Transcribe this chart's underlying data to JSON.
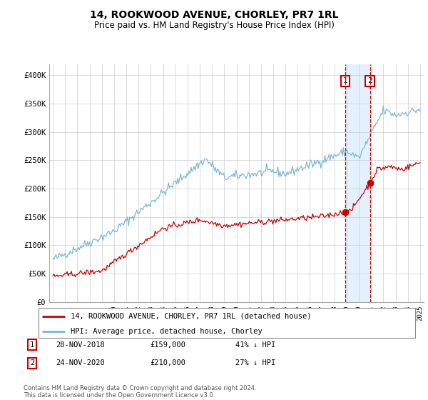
{
  "title": "14, ROOKWOOD AVENUE, CHORLEY, PR7 1RL",
  "subtitle": "Price paid vs. HM Land Registry's House Price Index (HPI)",
  "legend_line1": "14, ROOKWOOD AVENUE, CHORLEY, PR7 1RL (detached house)",
  "legend_line2": "HPI: Average price, detached house, Chorley",
  "sale1_date": "28-NOV-2018",
  "sale1_price": 159000,
  "sale1_label": "41% ↓ HPI",
  "sale2_date": "24-NOV-2020",
  "sale2_price": 210000,
  "sale2_label": "27% ↓ HPI",
  "footnote": "Contains HM Land Registry data © Crown copyright and database right 2024.\nThis data is licensed under the Open Government Licence v3.0.",
  "hpi_color": "#7ab8d9",
  "price_color": "#cc0000",
  "sale_dot_color": "#cc0000",
  "vline_color": "#cc0000",
  "shade_color": "#ddeeff",
  "ylim": [
    0,
    420000
  ],
  "ylabel_ticks": [
    "£0",
    "£50K",
    "£100K",
    "£150K",
    "£200K",
    "£250K",
    "£300K",
    "£350K",
    "£400K"
  ],
  "ytick_vals": [
    0,
    50000,
    100000,
    150000,
    200000,
    250000,
    300000,
    350000,
    400000
  ],
  "sale1_year": 2018.9,
  "sale2_year": 2020.9,
  "start_year": 1995,
  "end_year": 2025
}
